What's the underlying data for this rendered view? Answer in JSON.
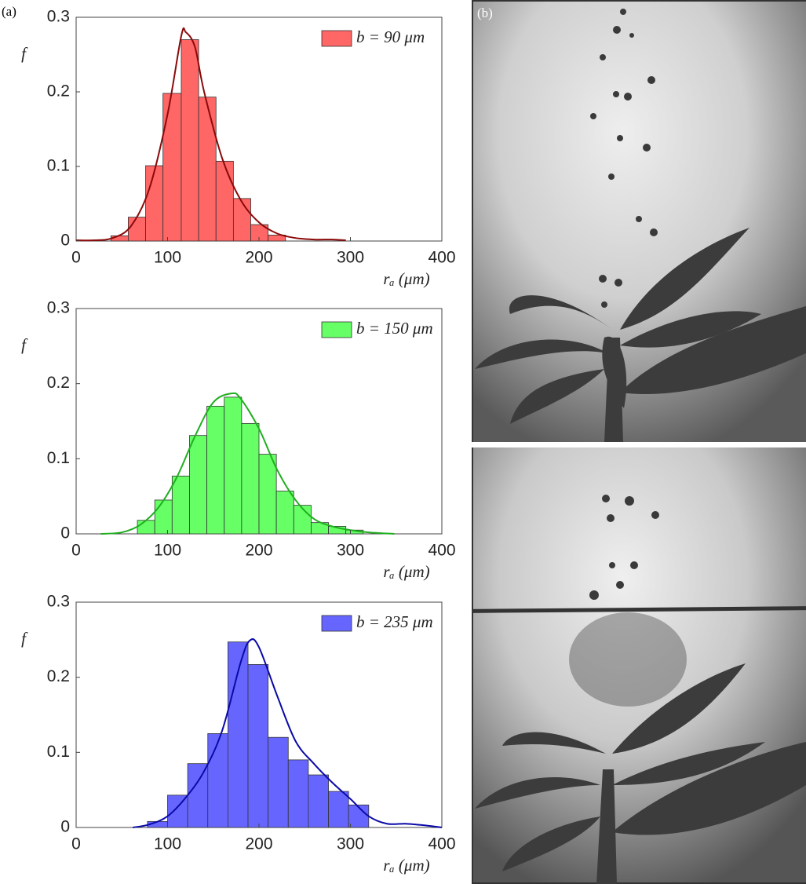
{
  "panel_labels": [
    "(a)",
    "(b)"
  ],
  "chart_data": [
    {
      "type": "histogram",
      "xlabel": "rₐ (μm)",
      "ylabel": "f",
      "bins": [
        38,
        57,
        76,
        95,
        115,
        134,
        153,
        172,
        191,
        210,
        229
      ],
      "series": [
        {
          "name": "b = 90 μm",
          "color": "#ff6666",
          "values": [
            0.007,
            0.032,
            0.101,
            0.198,
            0.27,
            0.193,
            0.107,
            0.057,
            0.022,
            0.008
          ]
        }
      ],
      "curve": {
        "color": "#8b0a0a",
        "x": [
          0,
          20,
          40,
          60,
          80,
          100,
          115,
          120,
          130,
          140,
          160,
          180,
          200,
          220,
          240,
          260,
          280,
          295
        ],
        "values": [
          0.001,
          0.001,
          0.004,
          0.02,
          0.07,
          0.17,
          0.275,
          0.28,
          0.26,
          0.2,
          0.11,
          0.055,
          0.025,
          0.01,
          0.004,
          0.002,
          0.002,
          0.001
        ]
      },
      "xlim": [
        0,
        400
      ],
      "xticks": [
        0,
        100,
        200,
        300,
        400
      ],
      "ylim": [
        0,
        0.3
      ],
      "yticks": [
        0,
        0.1,
        0.2,
        0.3
      ],
      "legend": "upper right"
    },
    {
      "type": "histogram",
      "xlabel": "rₐ (μm)",
      "ylabel": "f",
      "bins": [
        67,
        86,
        105,
        124,
        143,
        162,
        181,
        200,
        219,
        238,
        257,
        276,
        295,
        314
      ],
      "series": [
        {
          "name": "b = 150 μm",
          "color": "#66ff66",
          "values": [
            0.018,
            0.045,
            0.077,
            0.131,
            0.17,
            0.182,
            0.147,
            0.106,
            0.057,
            0.038,
            0.015,
            0.01,
            0.005
          ]
        }
      ],
      "curve": {
        "color": "#1fae1f",
        "x": [
          27,
          50,
          70,
          90,
          110,
          130,
          150,
          170,
          180,
          200,
          220,
          240,
          260,
          280,
          300,
          320,
          348
        ],
        "values": [
          0,
          0.002,
          0.012,
          0.035,
          0.075,
          0.13,
          0.175,
          0.187,
          0.18,
          0.14,
          0.085,
          0.045,
          0.02,
          0.01,
          0.005,
          0.002,
          0
        ]
      },
      "xlim": [
        0,
        400
      ],
      "xticks": [
        0,
        100,
        200,
        300,
        400
      ],
      "ylim": [
        0,
        0.3
      ],
      "yticks": [
        0,
        0.1,
        0.2,
        0.3
      ],
      "legend": "upper right"
    },
    {
      "type": "histogram",
      "xlabel": "rₐ (μm)",
      "ylabel": "f",
      "bins": [
        78,
        100,
        122,
        144,
        166,
        188,
        210,
        232,
        254,
        276,
        298,
        320
      ],
      "series": [
        {
          "name": "b = 235 μm",
          "color": "#6666ff",
          "values": [
            0.008,
            0.043,
            0.085,
            0.125,
            0.247,
            0.217,
            0.12,
            0.09,
            0.07,
            0.048,
            0.03
          ]
        }
      ],
      "curve": {
        "color": "#0a0aa8",
        "x": [
          62,
          80,
          100,
          120,
          140,
          160,
          180,
          190,
          200,
          220,
          240,
          260,
          280,
          300,
          320,
          340,
          360,
          380,
          400
        ],
        "values": [
          0,
          0.004,
          0.015,
          0.04,
          0.075,
          0.13,
          0.22,
          0.249,
          0.24,
          0.175,
          0.115,
          0.085,
          0.06,
          0.038,
          0.015,
          0.005,
          0.005,
          0.003,
          0
        ]
      },
      "xlim": [
        0,
        400
      ],
      "xticks": [
        0,
        100,
        200,
        300,
        400
      ],
      "ylim": [
        0,
        0.3
      ],
      "yticks": [
        0,
        0.1,
        0.2,
        0.3
      ],
      "legend": "upper right"
    }
  ]
}
